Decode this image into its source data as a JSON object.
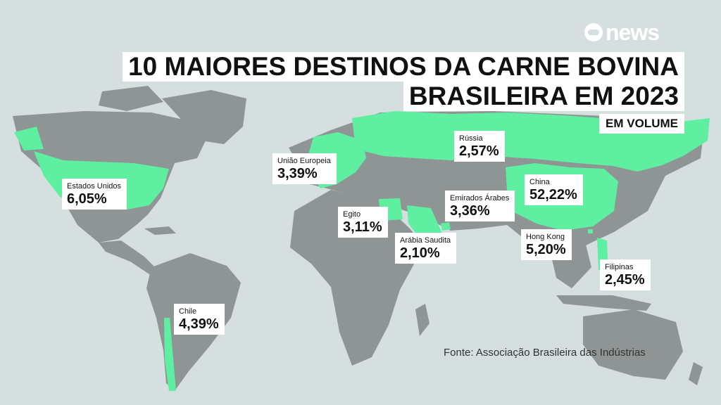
{
  "brand": {
    "logo_text": "news"
  },
  "title": {
    "line1": "10 MAIORES DESTINOS DA CARNE BOVINA",
    "line2": "BRASILEIRA EM 2023",
    "subtitle": "EM VOLUME"
  },
  "destinations": [
    {
      "name": "Estados Unidos",
      "value": "6,05%"
    },
    {
      "name": "União Europeia",
      "value": "3,39%"
    },
    {
      "name": "Rússia",
      "value": "2,57%"
    },
    {
      "name": "China",
      "value": "52,22%"
    },
    {
      "name": "Emirados Árabes",
      "value": "3,36%"
    },
    {
      "name": "Egito",
      "value": "3,11%"
    },
    {
      "name": "Arábia Saudita",
      "value": "2,10%"
    },
    {
      "name": "Hong Kong",
      "value": "5,20%"
    },
    {
      "name": "Filipinas",
      "value": "2,45%"
    },
    {
      "name": "Chile",
      "value": "4,39%"
    }
  ],
  "source": "Fonte:  Associação Brasileira das Indústrias",
  "colors": {
    "background": "#d6dfe0",
    "land": "#8f9494",
    "highlight": "#5ef0a0",
    "label_bg": "#ffffff",
    "text": "#111111"
  }
}
